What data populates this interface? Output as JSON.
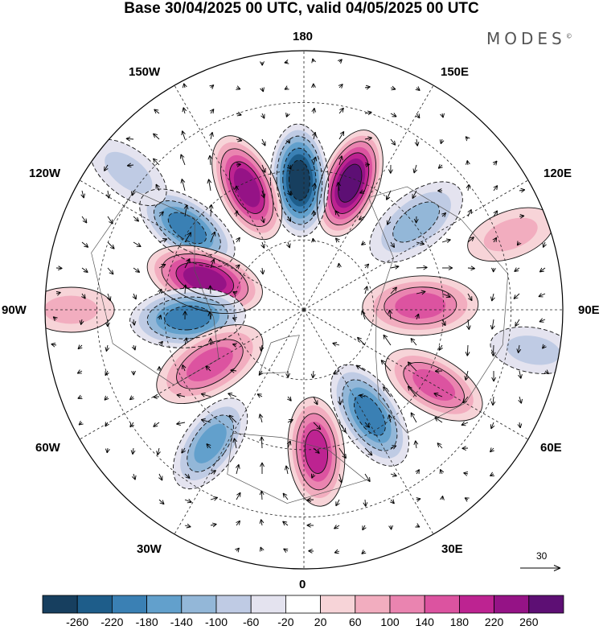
{
  "title": "Base 30/04/2025 00 UTC, valid 04/05/2025 00 UTC",
  "brand": "MODES",
  "brand_mark": "©",
  "longitude_labels": {
    "lon_180": "180",
    "lon_150w": "150W",
    "lon_150e": "150E",
    "lon_120w": "120W",
    "lon_120e": "120E",
    "lon_90w": "90W",
    "lon_90e": "90E",
    "lon_60w": "60W",
    "lon_60e": "60E",
    "lon_30w": "30W",
    "lon_30e": "30E",
    "lon_0": "0"
  },
  "reference_vector": {
    "label": "30"
  },
  "colorbar": {
    "ticks": [
      "-260",
      "-220",
      "-180",
      "-140",
      "-100",
      "-60",
      "-20",
      "20",
      "60",
      "100",
      "140",
      "180",
      "220",
      "260"
    ],
    "colors": [
      "#173f5f",
      "#1e5d8a",
      "#3a80b4",
      "#62a0cc",
      "#93b7d8",
      "#bfcbe4",
      "#e4e3ef",
      "#ffffff",
      "#f7d4d8",
      "#f2adbf",
      "#ea84b0",
      "#dc53a0",
      "#bd2391",
      "#951386",
      "#5d0f74"
    ]
  },
  "anomaly_centres": [
    {
      "lon": 160,
      "r": 0.52,
      "value": 260
    },
    {
      "lon": 182,
      "r": 0.5,
      "value": -260
    },
    {
      "lon": 205,
      "r": 0.52,
      "value": 230
    },
    {
      "lon": 235,
      "r": 0.55,
      "value": -200
    },
    {
      "lon": 253,
      "r": 0.4,
      "value": 250
    },
    {
      "lon": 274,
      "r": 0.45,
      "value": -210
    },
    {
      "lon": 300,
      "r": 0.42,
      "value": 160
    },
    {
      "lon": 325,
      "r": 0.63,
      "value": -150
    },
    {
      "lon": 5,
      "r": 0.55,
      "value": 180
    },
    {
      "lon": 32,
      "r": 0.48,
      "value": -210
    },
    {
      "lon": 60,
      "r": 0.58,
      "value": 150
    },
    {
      "lon": 92,
      "r": 0.45,
      "value": 160
    },
    {
      "lon": 128,
      "r": 0.55,
      "value": -120
    },
    {
      "lon": 110,
      "r": 0.85,
      "value": 80
    },
    {
      "lon": 232,
      "r": 0.86,
      "value": -90
    },
    {
      "lon": 80,
      "r": 0.9,
      "value": -60
    },
    {
      "lon": 270,
      "r": 0.9,
      "value": 70
    }
  ]
}
